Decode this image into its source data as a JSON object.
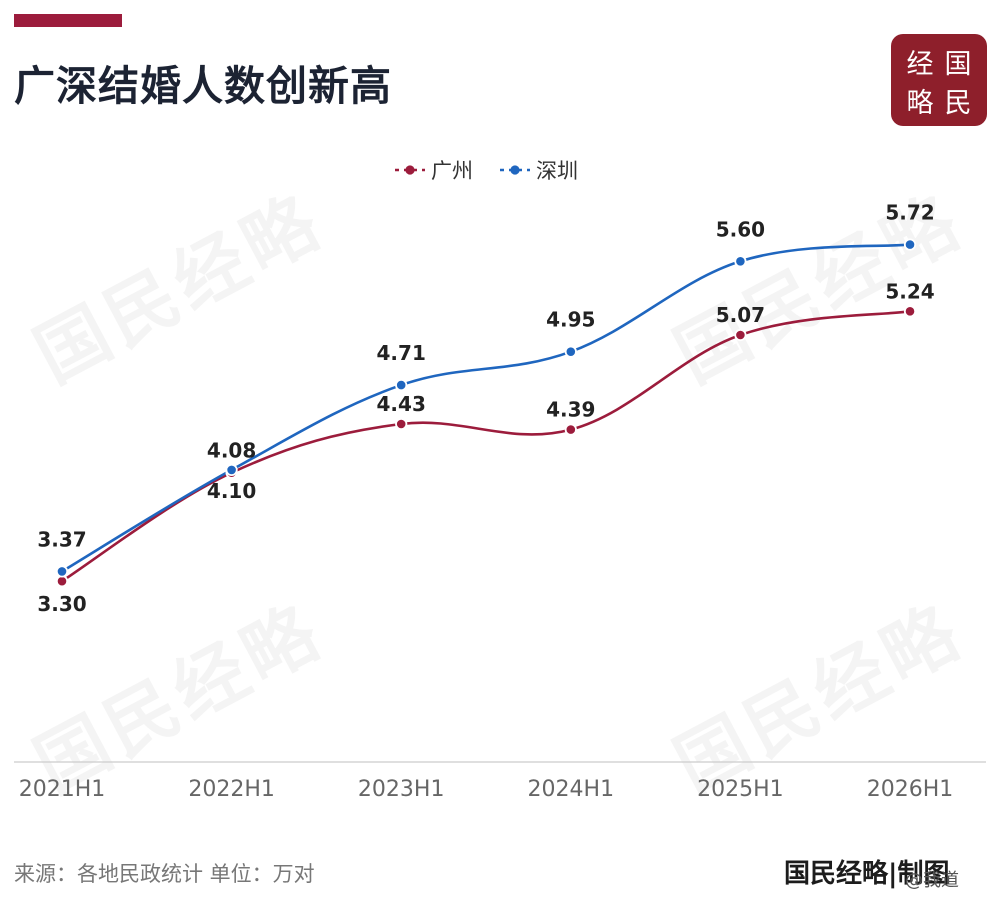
{
  "header": {
    "title": "广深结婚人数创新高"
  },
  "logo": {
    "chars": [
      "经",
      "国",
      "略",
      "民"
    ]
  },
  "watermark": "国民经略",
  "footer": {
    "source": "来源：各地民政统计 单位：万对",
    "credit": "国民经略|制图",
    "weibo": "@我道"
  },
  "colors": {
    "accent": "#9c1c3c",
    "guangzhou": "#9c1c3c",
    "shenzhen": "#1f66bf",
    "logo_bg": "#8e1f2b"
  },
  "chart_data": {
    "type": "line",
    "title": "广深结婚人数创新高",
    "x": [
      "2021H1",
      "2022H1",
      "2023H1",
      "2024H1",
      "2025H1",
      "2026H1"
    ],
    "series": [
      {
        "name": "广州",
        "values": [
          3.3,
          4.08,
          4.43,
          4.39,
          5.07,
          5.24
        ],
        "color": "#9c1c3c"
      },
      {
        "name": "深圳",
        "values": [
          3.37,
          4.1,
          4.71,
          4.95,
          5.6,
          5.72
        ],
        "color": "#1f66bf"
      }
    ],
    "ylim": [
      2.0,
      6.4
    ],
    "legend_position": "top-center",
    "grid": false,
    "smooth": true,
    "unit": "万对"
  }
}
